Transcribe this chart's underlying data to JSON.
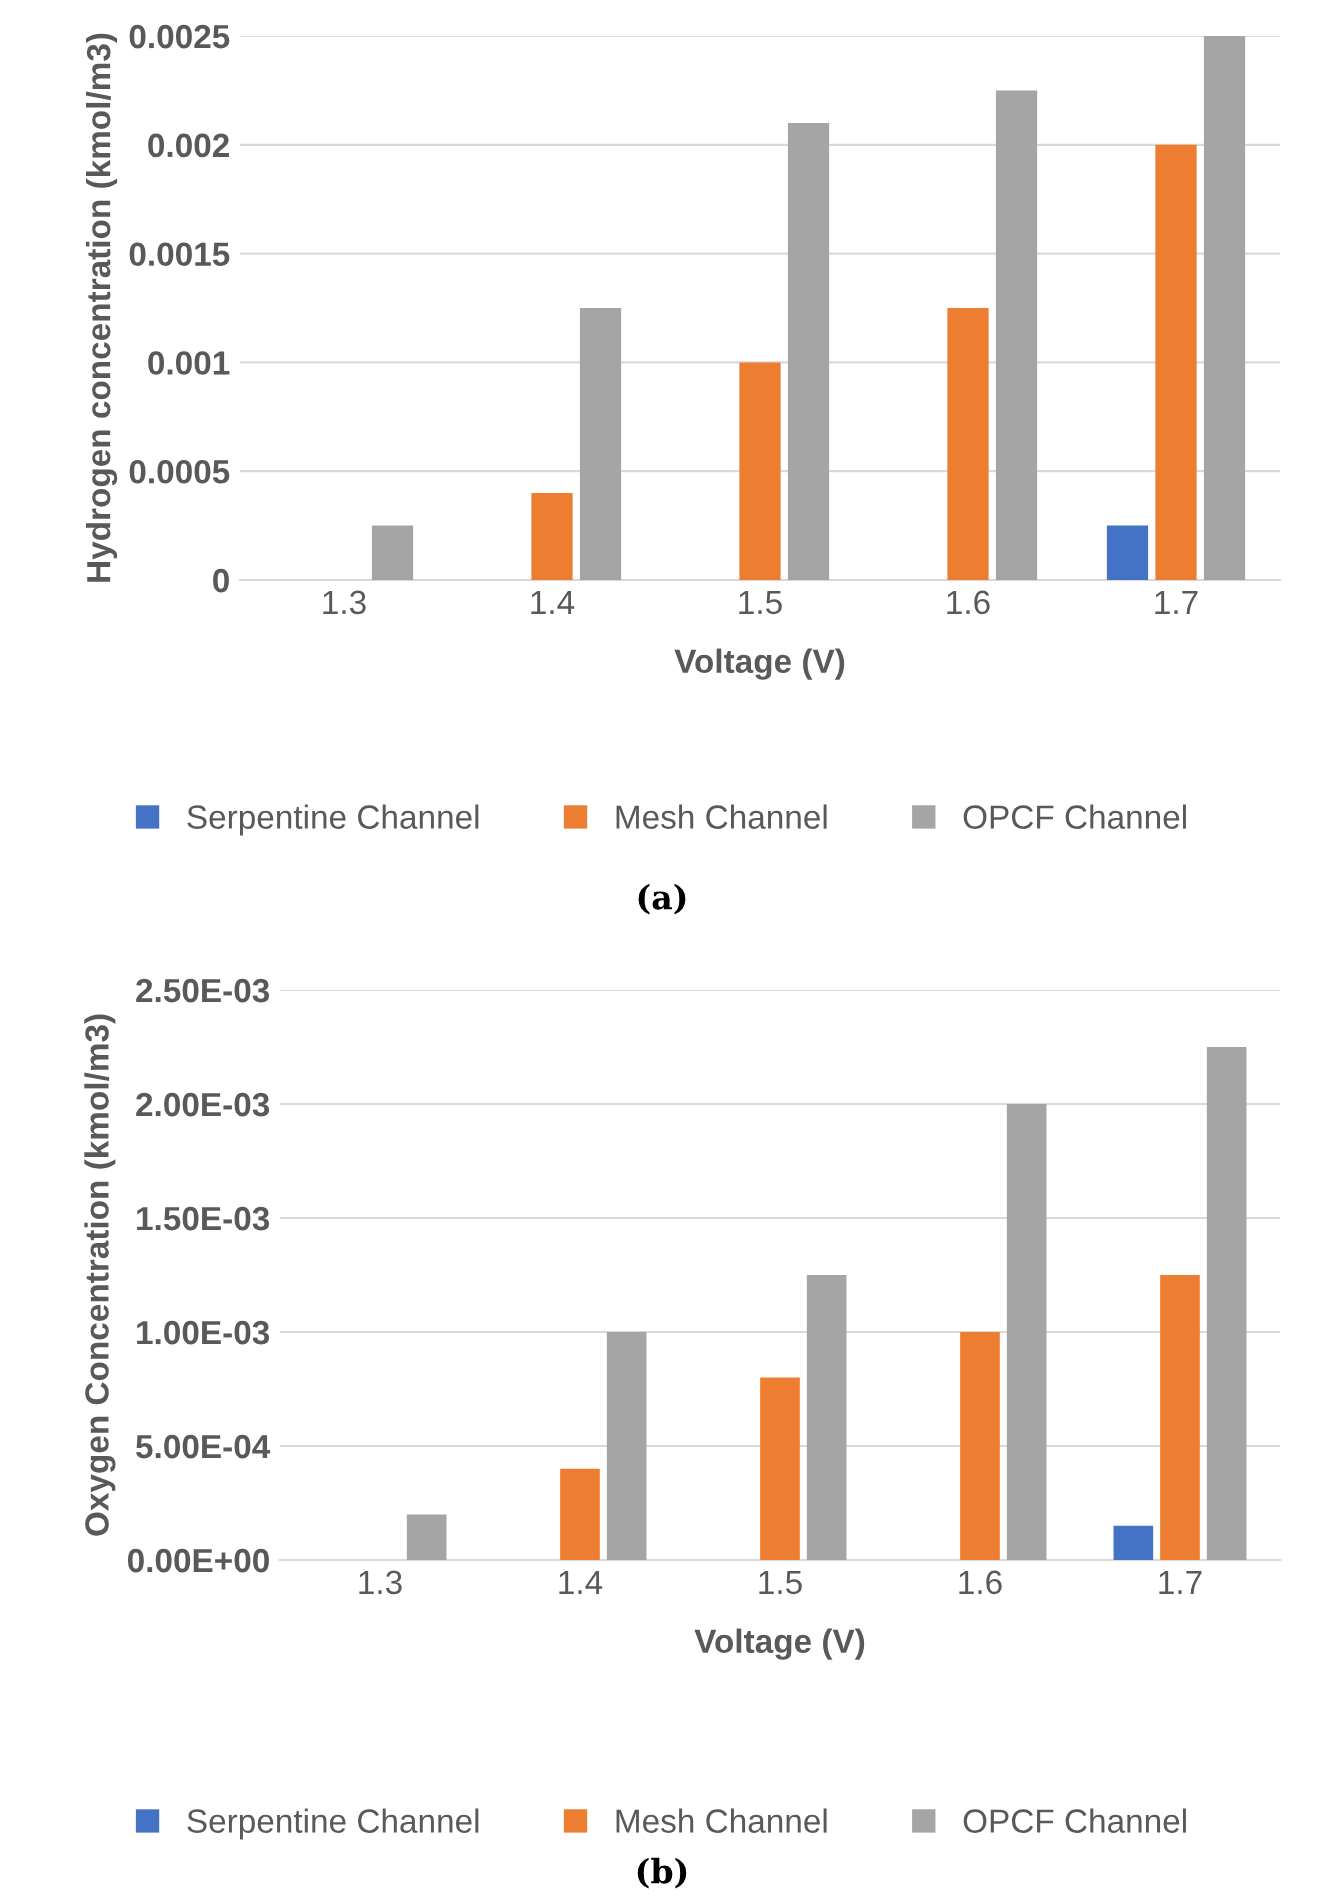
{
  "chart_data": [
    {
      "type": "bar",
      "xlabel": "Voltage (V)",
      "ylabel": "Hydrogen concentration (kmol/m3)",
      "categories": [
        "1.3",
        "1.4",
        "1.5",
        "1.6",
        "1.7"
      ],
      "series": [
        {
          "name": "Serpentine Channel",
          "color": "#4472c4",
          "values": [
            0,
            0,
            0,
            0,
            0.00025
          ]
        },
        {
          "name": "Mesh Channel",
          "color": "#ed7d31",
          "values": [
            0,
            0.0004,
            0.001,
            0.00125,
            0.002
          ]
        },
        {
          "name": "OPCF Channel",
          "color": "#a5a5a5",
          "values": [
            0.00025,
            0.00125,
            0.0021,
            0.00225,
            0.0025
          ]
        }
      ],
      "ylim": [
        0,
        0.0025
      ],
      "yticks": [
        0,
        0.0005,
        0.001,
        0.0015,
        0.002,
        0.0025
      ],
      "grid": "y",
      "legend": "bottom",
      "annotations": [
        "(a)"
      ]
    },
    {
      "type": "bar",
      "xlabel": "Voltage (V)",
      "ylabel": "Oxygen Concentration (kmol/m3)",
      "categories": [
        "1.3",
        "1.4",
        "1.5",
        "1.6",
        "1.7"
      ],
      "series": [
        {
          "name": "Serpentine Channel",
          "color": "#4472c4",
          "values": [
            0,
            0,
            0,
            0,
            0.00015
          ]
        },
        {
          "name": "Mesh Channel",
          "color": "#ed7d31",
          "values": [
            0,
            0.0004,
            0.0008,
            0.001,
            0.00125
          ]
        },
        {
          "name": "OPCF Channel",
          "color": "#a5a5a5",
          "values": [
            0.0002,
            0.001,
            0.00125,
            0.002,
            0.00225
          ]
        }
      ],
      "ylim": [
        0,
        0.0025
      ],
      "yticks": [
        {
          "value": 0,
          "label": "0.00E+00"
        },
        {
          "value": 0.0005,
          "label": "5.00E-04"
        },
        {
          "value": 0.001,
          "label": "1.00E-03"
        },
        {
          "value": 0.0015,
          "label": "1.50E-03"
        },
        {
          "value": 0.002,
          "label": "2.00E-03"
        },
        {
          "value": 0.0025,
          "label": "2.50E-03"
        }
      ],
      "grid": "y",
      "legend": "bottom",
      "annotations": [
        "(b)"
      ]
    }
  ]
}
